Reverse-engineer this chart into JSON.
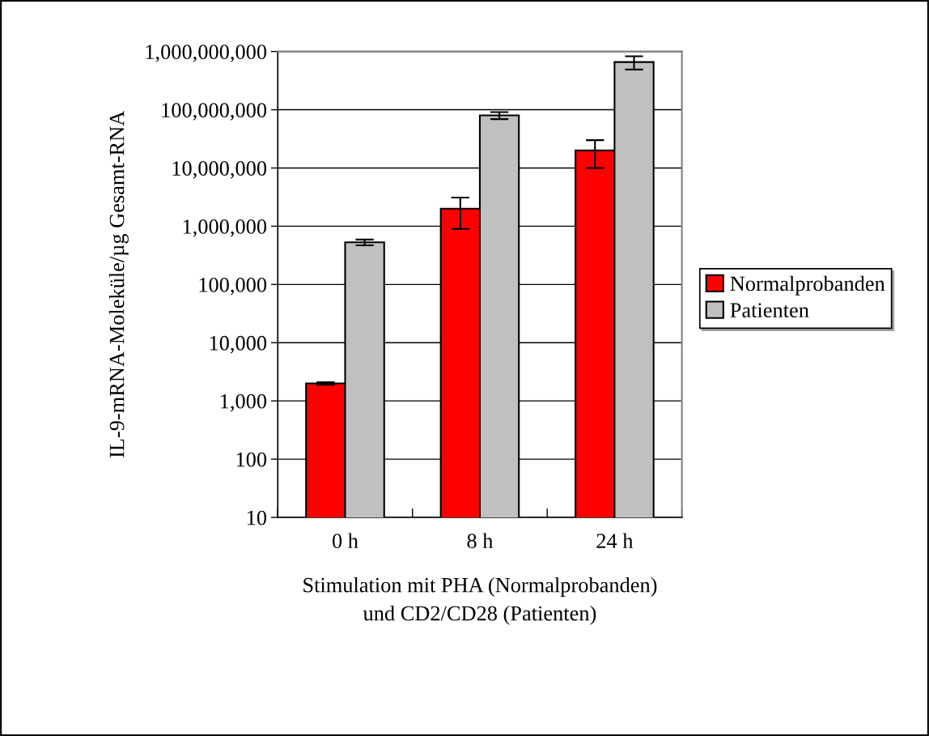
{
  "chart_data": {
    "type": "bar",
    "xlabel": "Stimulation mit PHA (Normalprobanden)\nund CD2/CD28 (Patienten)",
    "ylabel": "IL-9-mRNA-Moleküle/µg Gesamt-RNA",
    "categories": [
      "0 h",
      "8 h",
      "24 h"
    ],
    "series": [
      {
        "name": "Normalprobanden",
        "color": "#ff0000",
        "values": [
          2000,
          2000000,
          20000000
        ],
        "errors": [
          100,
          1100000,
          10000000
        ]
      },
      {
        "name": "Patienten",
        "color": "#c0c0c0",
        "values": [
          530000,
          80000000,
          660000000
        ],
        "errors": [
          60000,
          11000000,
          170000000
        ]
      }
    ],
    "log": "y",
    "ylim": [
      10,
      1000000000
    ],
    "yticks": [
      {
        "value": 10,
        "label": "10"
      },
      {
        "value": 100,
        "label": "100"
      },
      {
        "value": 1000,
        "label": "1,000"
      },
      {
        "value": 10000,
        "label": "10,000"
      },
      {
        "value": 100000,
        "label": "100,000"
      },
      {
        "value": 1000000,
        "label": "1,000,000"
      },
      {
        "value": 10000000,
        "label": "10,000,000"
      },
      {
        "value": 100000000,
        "label": "100,000,000"
      },
      {
        "value": 1000000000,
        "label": "1,000,000,000"
      }
    ],
    "grid": "y",
    "legend": "right"
  }
}
